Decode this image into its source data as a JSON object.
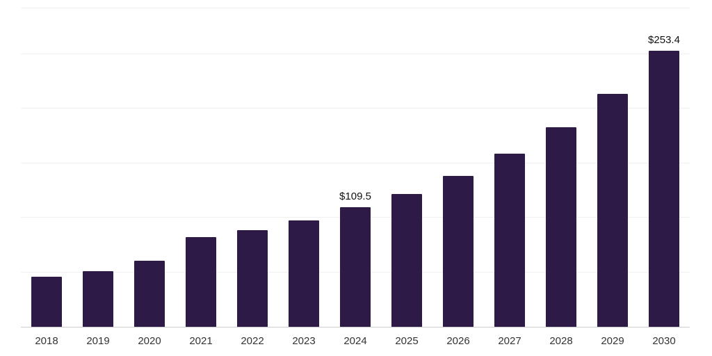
{
  "chart_data": {
    "type": "bar",
    "title": "",
    "xlabel": "",
    "ylabel": "",
    "categories": [
      "2018",
      "2019",
      "2020",
      "2021",
      "2022",
      "2023",
      "2024",
      "2025",
      "2026",
      "2027",
      "2028",
      "2029",
      "2030"
    ],
    "values": [
      46,
      51,
      60.5,
      82,
      88.5,
      97.5,
      109.5,
      122,
      138.5,
      159,
      183,
      213.5,
      253.4
    ],
    "point_labels": [
      "",
      "",
      "",
      "",
      "",
      "",
      "$109.5",
      "",
      "",
      "",
      "",
      "",
      "$253.4"
    ],
    "ylim": [
      0,
      292
    ],
    "gridline_values": [
      50,
      100,
      150,
      200,
      250,
      292
    ],
    "grid_on": true,
    "legend_position": "none",
    "bar_color": "#2e1a47",
    "grid_color": "#f0f0f0",
    "axis_color": "#cccccc",
    "tick_label_color": "#333333",
    "value_label_color": "#111111"
  }
}
